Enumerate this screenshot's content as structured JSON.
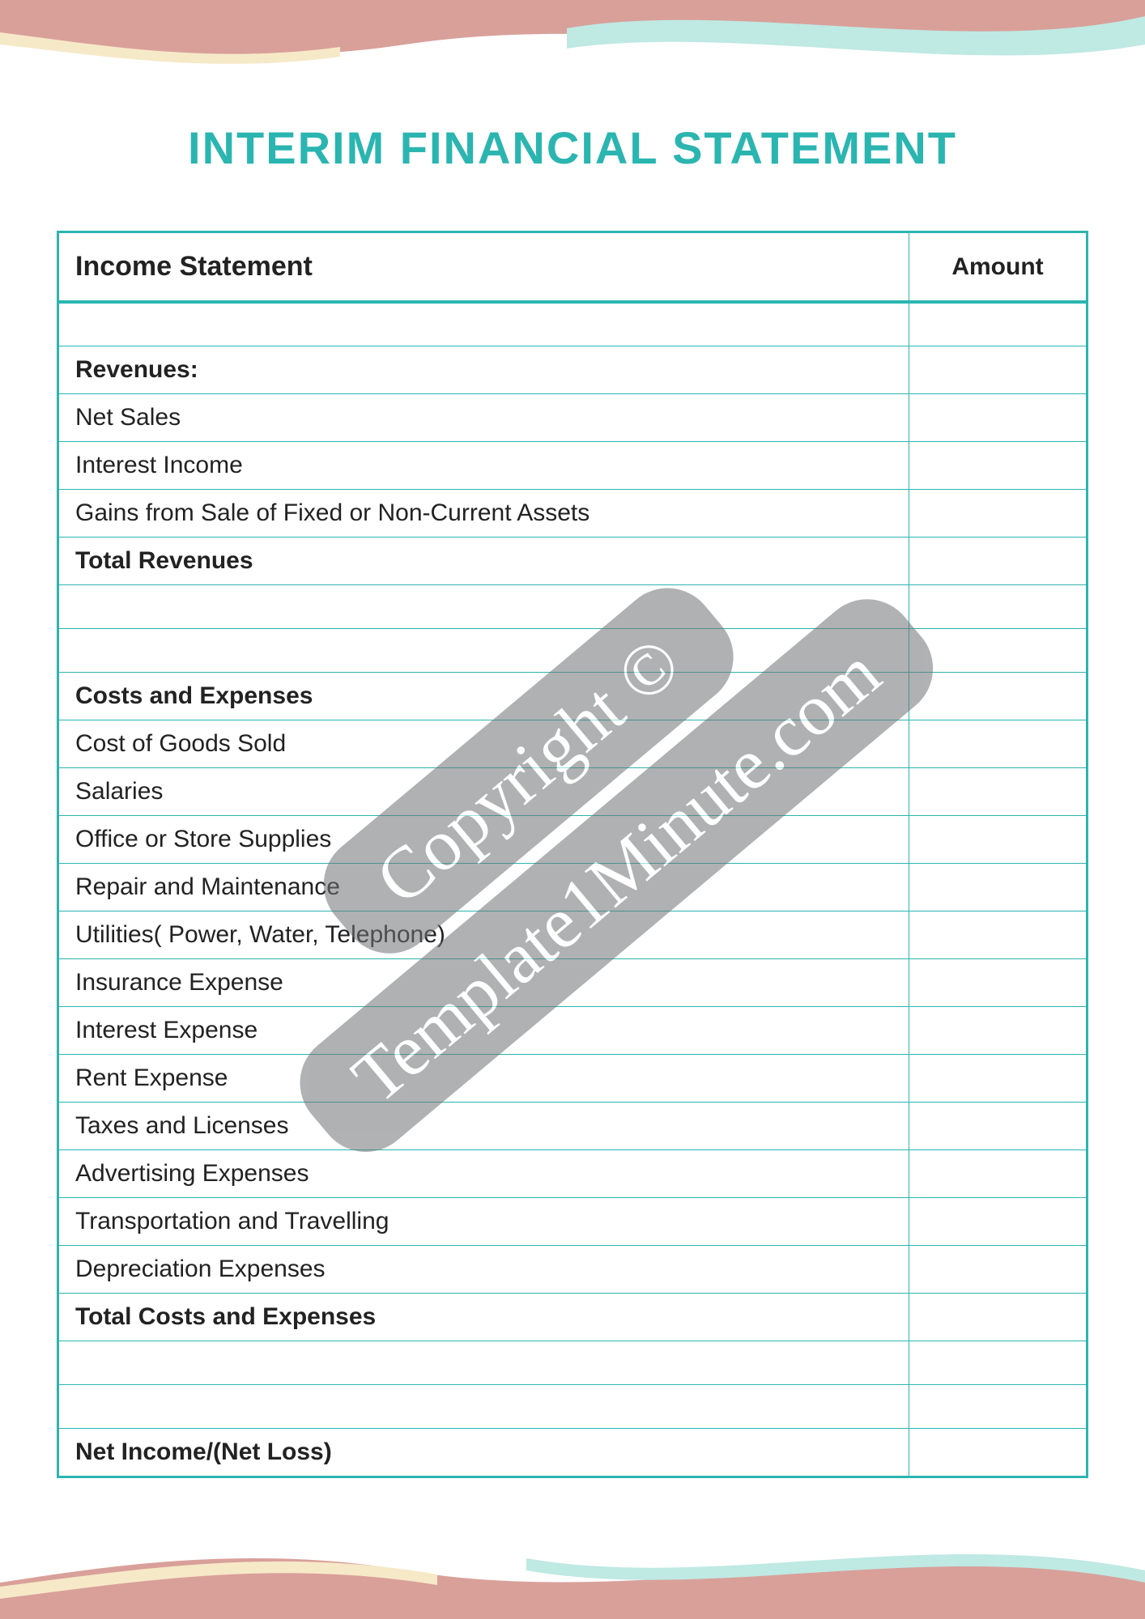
{
  "title": "INTERIM FINANCIAL STATEMENT",
  "colors": {
    "accent": "#2bb5b0",
    "text": "#222222",
    "wave_pink": "#d9a09a",
    "wave_cyan": "#bfe9e3",
    "wave_yellow": "#f6e9c8",
    "watermark_bg": "#6f7274",
    "watermark_text": "#ffffff"
  },
  "table": {
    "header": {
      "left": "Income Statement",
      "right": "Amount"
    },
    "rows": [
      {
        "label": "",
        "amount": "",
        "bold": false
      },
      {
        "label": "Revenues:",
        "amount": "",
        "bold": true
      },
      {
        "label": "Net Sales",
        "amount": "",
        "bold": false
      },
      {
        "label": "Interest Income",
        "amount": "",
        "bold": false
      },
      {
        "label": "Gains from Sale of Fixed or Non-Current Assets",
        "amount": "",
        "bold": false
      },
      {
        "label": "Total Revenues",
        "amount": "",
        "bold": true
      },
      {
        "label": "",
        "amount": "",
        "bold": false
      },
      {
        "label": "",
        "amount": "",
        "bold": false
      },
      {
        "label": "Costs and Expenses",
        "amount": "",
        "bold": true
      },
      {
        "label": "Cost of Goods Sold",
        "amount": "",
        "bold": false
      },
      {
        "label": "Salaries",
        "amount": "",
        "bold": false
      },
      {
        "label": "Office or Store Supplies",
        "amount": "",
        "bold": false
      },
      {
        "label": "Repair and Maintenance",
        "amount": "",
        "bold": false
      },
      {
        "label": "Utilities( Power, Water, Telephone)",
        "amount": "",
        "bold": false
      },
      {
        "label": "Insurance Expense",
        "amount": "",
        "bold": false
      },
      {
        "label": "Interest Expense",
        "amount": "",
        "bold": false
      },
      {
        "label": "Rent Expense",
        "amount": "",
        "bold": false
      },
      {
        "label": "Taxes and Licenses",
        "amount": "",
        "bold": false
      },
      {
        "label": "Advertising Expenses",
        "amount": "",
        "bold": false
      },
      {
        "label": "Transportation and Travelling",
        "amount": "",
        "bold": false
      },
      {
        "label": "Depreciation Expenses",
        "amount": "",
        "bold": false
      },
      {
        "label": "Total Costs and Expenses",
        "amount": "",
        "bold": true
      },
      {
        "label": "",
        "amount": "",
        "bold": false
      },
      {
        "label": "",
        "amount": "",
        "bold": false
      },
      {
        "label": "Net Income/(Net Loss)",
        "amount": "",
        "bold": true
      }
    ]
  },
  "watermark": {
    "line1": "Copyright ©",
    "line2": "Template1Minute.com"
  }
}
